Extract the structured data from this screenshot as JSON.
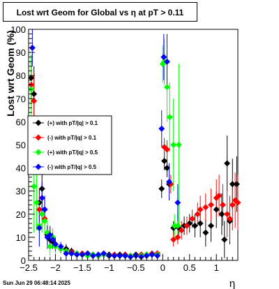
{
  "title": "Lost wrt Geom for Global vs   η  at pT > 0.11",
  "timestamp": "Sun Jun 29 06:48:14 2025",
  "chart_data": {
    "type": "scatter",
    "xlabel": "η",
    "ylabel": "Lost wrt Geom (%)",
    "xlim": [
      -2.5,
      1.4
    ],
    "ylim": [
      0,
      100
    ],
    "x_ticks": [
      -2.5,
      -2,
      -1.5,
      -1,
      -0.5,
      0,
      0.5,
      1
    ],
    "x_tick_labels": [
      "−2.5",
      "−2",
      "−1.5",
      "−1",
      "−0.5",
      "0",
      "0.5",
      "1"
    ],
    "y_ticks": [
      0,
      10,
      20,
      30,
      40,
      50,
      60,
      70,
      80,
      90,
      100
    ],
    "y_tick_labels": [
      "0",
      "10",
      "20",
      "30",
      "40",
      "50",
      "60",
      "70",
      "80",
      "90",
      "100"
    ],
    "legend_position": "middle-left",
    "series": [
      {
        "name": "(+) with pT/|q| > 0.1",
        "color": "#000000",
        "points": [
          [
            -2.45,
            79,
            10
          ],
          [
            -2.4,
            72,
            12
          ],
          [
            -2.3,
            25,
            6
          ],
          [
            -2.25,
            31,
            6
          ],
          [
            -2.2,
            22,
            5
          ],
          [
            -2.15,
            11,
            4
          ],
          [
            -2.1,
            9,
            3
          ],
          [
            -2.05,
            8,
            3
          ],
          [
            -2.0,
            7,
            3
          ],
          [
            -1.9,
            5,
            2
          ],
          [
            -1.8,
            5,
            2
          ],
          [
            -1.7,
            4,
            1.5
          ],
          [
            -1.6,
            3,
            1
          ],
          [
            -1.5,
            2.5,
            1
          ],
          [
            -1.4,
            2.5,
            1
          ],
          [
            -1.3,
            2.5,
            1
          ],
          [
            -1.2,
            2,
            1
          ],
          [
            -1.1,
            2.5,
            1
          ],
          [
            -1.0,
            2.5,
            1
          ],
          [
            -0.9,
            2,
            1
          ],
          [
            -0.8,
            2.5,
            1
          ],
          [
            -0.7,
            2.5,
            1
          ],
          [
            -0.6,
            2,
            1
          ],
          [
            -0.5,
            2.5,
            1
          ],
          [
            -0.4,
            2.5,
            1
          ],
          [
            -0.3,
            2.5,
            1
          ],
          [
            -0.2,
            2.5,
            1
          ],
          [
            -0.1,
            3,
            1
          ],
          [
            -0.02,
            31,
            4
          ],
          [
            0.03,
            43,
            4
          ],
          [
            0.08,
            40,
            4
          ],
          [
            0.12,
            33,
            4
          ],
          [
            0.2,
            14,
            3
          ],
          [
            0.3,
            14,
            3
          ],
          [
            0.4,
            15,
            4
          ],
          [
            0.5,
            16,
            4
          ],
          [
            0.6,
            15,
            5
          ],
          [
            0.7,
            16,
            6
          ],
          [
            0.8,
            12,
            6
          ],
          [
            0.9,
            15,
            7
          ],
          [
            1.0,
            22,
            8
          ],
          [
            1.1,
            20,
            9
          ],
          [
            1.15,
            9,
            8
          ],
          [
            1.2,
            42,
            12
          ],
          [
            1.25,
            17,
            10
          ],
          [
            1.3,
            33,
            11
          ],
          [
            1.38,
            33,
            12
          ]
        ]
      },
      {
        "name": "(-) with pT/|q| > 0.1",
        "color": "#ff0000",
        "points": [
          [
            -2.45,
            76,
            10
          ],
          [
            -2.4,
            69,
            12
          ],
          [
            -2.3,
            22,
            6
          ],
          [
            -2.25,
            20,
            6
          ],
          [
            -2.2,
            18,
            5
          ],
          [
            -2.15,
            12,
            4
          ],
          [
            -2.1,
            11,
            3
          ],
          [
            -2.05,
            9,
            3
          ],
          [
            -2.0,
            7,
            3
          ],
          [
            -1.9,
            5,
            2
          ],
          [
            -1.8,
            4,
            2
          ],
          [
            -1.7,
            3.5,
            1.5
          ],
          [
            -1.6,
            3,
            1
          ],
          [
            -1.5,
            3,
            1
          ],
          [
            -1.4,
            3,
            1
          ],
          [
            -1.3,
            2.5,
            1
          ],
          [
            -1.2,
            2,
            1
          ],
          [
            -1.1,
            2.5,
            1
          ],
          [
            -1.0,
            2,
            1
          ],
          [
            -0.9,
            2.5,
            1
          ],
          [
            -0.8,
            2,
            1
          ],
          [
            -0.7,
            2.5,
            1
          ],
          [
            -0.6,
            2,
            1
          ],
          [
            -0.5,
            2,
            1
          ],
          [
            -0.4,
            2.5,
            1
          ],
          [
            -0.3,
            2.5,
            1
          ],
          [
            -0.2,
            3,
            1
          ],
          [
            -0.1,
            3,
            1
          ],
          [
            0.03,
            49,
            4
          ],
          [
            0.08,
            48,
            4
          ],
          [
            0.15,
            33,
            4
          ],
          [
            0.2,
            9,
            3
          ],
          [
            0.28,
            10,
            3
          ],
          [
            0.35,
            13,
            4
          ],
          [
            0.45,
            15,
            4
          ],
          [
            0.55,
            18,
            4
          ],
          [
            0.65,
            20,
            5
          ],
          [
            0.7,
            22,
            6
          ],
          [
            0.8,
            23,
            6
          ],
          [
            0.9,
            24,
            7
          ],
          [
            1.0,
            27,
            8
          ],
          [
            1.05,
            28,
            9
          ],
          [
            1.12,
            24,
            9
          ],
          [
            1.2,
            20,
            10
          ],
          [
            1.25,
            18,
            10
          ],
          [
            1.3,
            24,
            11
          ],
          [
            1.35,
            26,
            12
          ],
          [
            1.4,
            25,
            12
          ]
        ]
      },
      {
        "name": "(+) with pT/|q| > 0.5",
        "color": "#00ff00",
        "points": [
          [
            -2.45,
            74,
            15
          ],
          [
            -2.4,
            32,
            20
          ],
          [
            -2.35,
            25,
            12
          ],
          [
            -2.3,
            15,
            9
          ],
          [
            -2.25,
            20,
            8
          ],
          [
            -2.2,
            17,
            6
          ],
          [
            -2.15,
            12,
            5
          ],
          [
            -2.1,
            6,
            4
          ],
          [
            -2.05,
            10,
            4
          ],
          [
            -2.0,
            6,
            3
          ],
          [
            -1.9,
            5,
            2
          ],
          [
            -1.8,
            4,
            2
          ],
          [
            -1.7,
            3,
            1.5
          ],
          [
            -1.6,
            3,
            1
          ],
          [
            -1.5,
            2.5,
            1
          ],
          [
            -1.4,
            2,
            1
          ],
          [
            -1.3,
            2.5,
            1
          ],
          [
            -1.2,
            2,
            1
          ],
          [
            -1.1,
            2.5,
            1
          ],
          [
            -1.0,
            2,
            1
          ],
          [
            -0.9,
            2,
            1
          ],
          [
            -0.8,
            2,
            1
          ],
          [
            -0.7,
            2,
            1
          ],
          [
            -0.6,
            2,
            1
          ],
          [
            -0.5,
            2,
            1
          ],
          [
            -0.4,
            2,
            1
          ],
          [
            -0.3,
            2.5,
            1
          ],
          [
            -0.2,
            2.5,
            1
          ],
          [
            -0.1,
            2.5,
            1
          ],
          [
            0.0,
            85,
            8
          ],
          [
            0.03,
            86,
            10
          ],
          [
            0.08,
            75,
            15
          ],
          [
            0.13,
            62,
            15
          ],
          [
            0.2,
            50,
            20
          ],
          [
            0.3,
            50,
            35
          ],
          [
            0.22,
            15,
            5
          ],
          [
            0.28,
            15,
            5
          ]
        ]
      },
      {
        "name": "(-) with pT/|q| > 0.5",
        "color": "#0000ff",
        "points": [
          [
            -2.43,
            92,
            8
          ],
          [
            -2.3,
            14,
            8
          ],
          [
            -2.25,
            27,
            7
          ],
          [
            -2.2,
            22,
            6
          ],
          [
            -2.15,
            10,
            5
          ],
          [
            -2.1,
            11,
            4
          ],
          [
            -2.05,
            9,
            3
          ],
          [
            -2.0,
            7,
            3
          ],
          [
            -1.9,
            6,
            2
          ],
          [
            -1.8,
            3,
            2
          ],
          [
            -1.7,
            3,
            1.5
          ],
          [
            -1.6,
            2.5,
            1
          ],
          [
            -1.5,
            2.5,
            1
          ],
          [
            -1.4,
            3,
            1
          ],
          [
            -1.3,
            2,
            1
          ],
          [
            -1.2,
            2.5,
            1
          ],
          [
            -1.1,
            3,
            1
          ],
          [
            -1.0,
            2,
            1
          ],
          [
            -0.9,
            2,
            1
          ],
          [
            -0.8,
            2,
            1
          ],
          [
            -0.7,
            2,
            1
          ],
          [
            -0.6,
            1.5,
            1
          ],
          [
            -0.5,
            2,
            1
          ],
          [
            -0.4,
            1.5,
            1
          ],
          [
            -0.3,
            2,
            1
          ],
          [
            -0.2,
            2.5,
            1
          ],
          [
            -0.1,
            2,
            1
          ],
          [
            -0.02,
            57,
            8
          ],
          [
            0.02,
            88,
            10
          ],
          [
            0.08,
            86,
            12
          ],
          [
            0.12,
            34,
            8
          ],
          [
            0.28,
            25,
            8
          ]
        ]
      }
    ]
  }
}
